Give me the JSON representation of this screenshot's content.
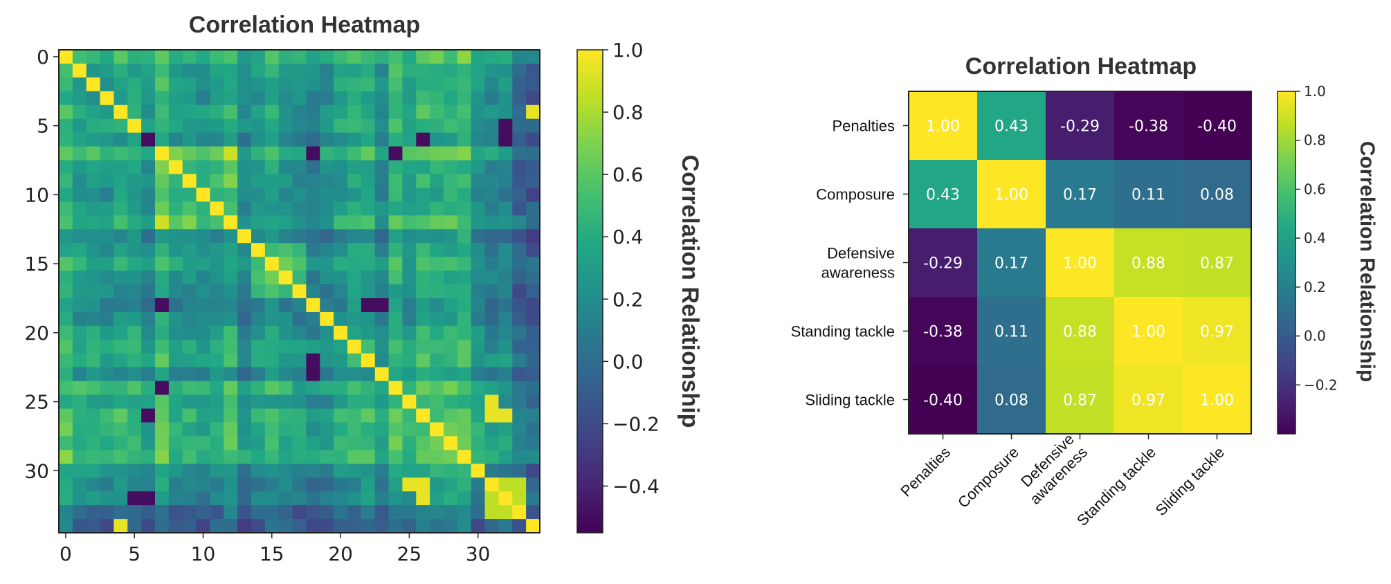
{
  "chart_data": [
    {
      "type": "heatmap",
      "title": "Correlation Heatmap",
      "colorbar_label": "Correlation Relationship",
      "colormap": "viridis",
      "size": 35,
      "x_ticks": [
        "0",
        "5",
        "10",
        "15",
        "20",
        "25",
        "30"
      ],
      "y_ticks": [
        "0",
        "5",
        "10",
        "15",
        "20",
        "25",
        "30"
      ],
      "colorbar_ticks": [
        "1.0",
        "0.8",
        "0.6",
        "0.4",
        "0.2",
        "0.0",
        "−0.2",
        "−0.4"
      ],
      "vlim": [
        -0.55,
        1.0
      ],
      "dark_pairs": [
        [
          5,
          32
        ],
        [
          6,
          32
        ],
        [
          6,
          26
        ],
        [
          6,
          6
        ],
        [
          18,
          7
        ],
        [
          22,
          18
        ],
        [
          23,
          18
        ],
        [
          24,
          7
        ],
        [
          32,
          6
        ]
      ],
      "bright_pairs": [
        [
          25,
          31
        ],
        [
          26,
          31
        ],
        [
          26,
          32
        ],
        [
          31,
          26
        ],
        [
          32,
          26
        ],
        [
          34,
          4
        ]
      ]
    },
    {
      "type": "heatmap",
      "title": "Correlation Heatmap",
      "colorbar_label": "Correlation Relationship",
      "colormap": "viridis",
      "categories": [
        "Penalties",
        "Composure",
        "Defensive awareness",
        "Standing tackle",
        "Sliding tackle"
      ],
      "row_labels": [
        [
          "Penalties"
        ],
        [
          "Composure"
        ],
        [
          "Defensive",
          "awareness"
        ],
        [
          "Standing tackle"
        ],
        [
          "Sliding tackle"
        ]
      ],
      "col_labels": [
        [
          "Penalties"
        ],
        [
          "Composure"
        ],
        [
          "Defensive",
          "awareness"
        ],
        [
          "Standing tackle"
        ],
        [
          "Sliding tackle"
        ]
      ],
      "values": [
        [
          1.0,
          0.43,
          -0.29,
          -0.38,
          -0.4
        ],
        [
          0.43,
          1.0,
          0.17,
          0.11,
          0.08
        ],
        [
          -0.29,
          0.17,
          1.0,
          0.88,
          0.87
        ],
        [
          -0.38,
          0.11,
          0.88,
          1.0,
          0.97
        ],
        [
          -0.4,
          0.08,
          0.87,
          0.97,
          1.0
        ]
      ],
      "value_labels": [
        [
          "1.00",
          "0.43",
          "-0.29",
          "-0.38",
          "-0.40"
        ],
        [
          "0.43",
          "1.00",
          "0.17",
          "0.11",
          "0.08"
        ],
        [
          "-0.29",
          "0.17",
          "1.00",
          "0.88",
          "0.87"
        ],
        [
          "-0.38",
          "0.11",
          "0.88",
          "1.00",
          "0.97"
        ],
        [
          "-0.40",
          "0.08",
          "0.87",
          "0.97",
          "1.00"
        ]
      ],
      "colorbar_ticks": [
        "1.0",
        "0.8",
        "0.6",
        "0.4",
        "0.2",
        "0.0",
        "−0.2"
      ],
      "vlim": [
        -0.4,
        1.0
      ]
    }
  ]
}
